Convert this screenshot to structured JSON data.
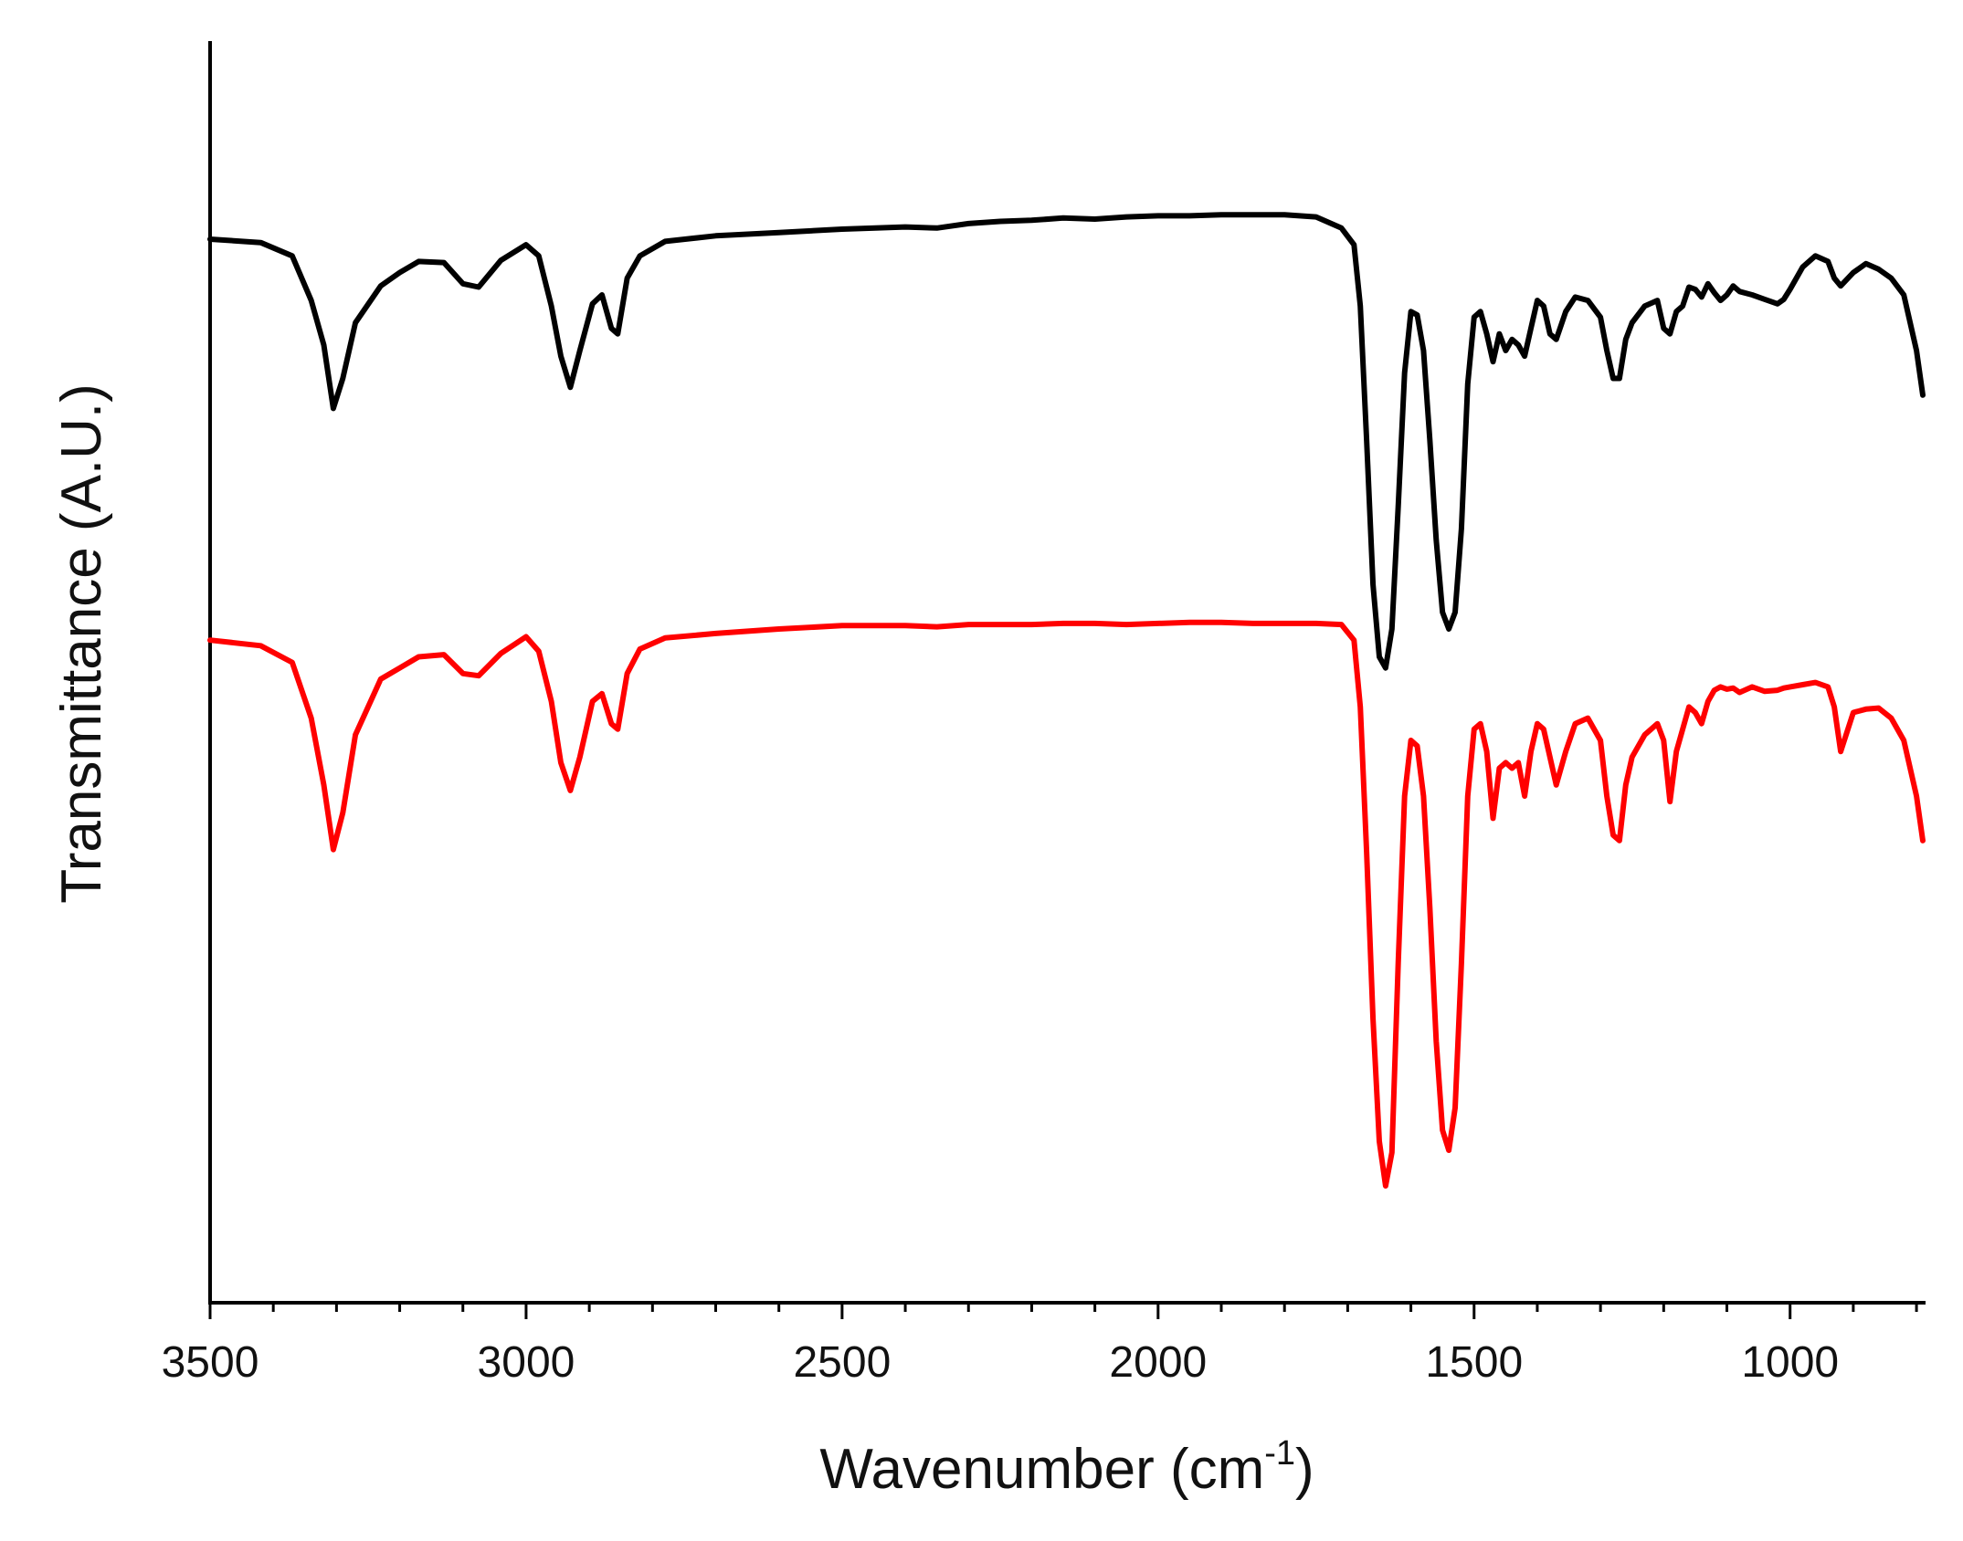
{
  "chart_data": {
    "type": "line",
    "title": "",
    "xlabel": "Wavenumber (cm",
    "xlabel_sup": "-1",
    "xlabel_close": ")",
    "ylabel": "Transmittance (A.U.)",
    "xlim": [
      3500,
      790
    ],
    "x_reversed": true,
    "ylim": [
      0,
      100
    ],
    "y_ticks_shown": false,
    "grid": false,
    "legend": "none",
    "x_ticks": [
      3500,
      3000,
      2500,
      2000,
      1500,
      1000
    ],
    "x_tick_labels": [
      "3500",
      "3000",
      "2500",
      "2000",
      "1500",
      "1000"
    ],
    "series": [
      {
        "color": "#000000",
        "x": [
          3500,
          3420,
          3370,
          3340,
          3320,
          3305,
          3290,
          3270,
          3230,
          3200,
          3170,
          3130,
          3100,
          3075,
          3040,
          3000,
          2980,
          2960,
          2945,
          2930,
          2915,
          2895,
          2880,
          2865,
          2855,
          2840,
          2820,
          2780,
          2700,
          2600,
          2500,
          2400,
          2350,
          2300,
          2250,
          2200,
          2150,
          2100,
          2050,
          2000,
          1950,
          1900,
          1850,
          1800,
          1750,
          1710,
          1690,
          1680,
          1670,
          1660,
          1650,
          1640,
          1630,
          1620,
          1610,
          1600,
          1590,
          1580,
          1570,
          1560,
          1550,
          1540,
          1530,
          1520,
          1510,
          1500,
          1490,
          1480,
          1470,
          1460,
          1450,
          1440,
          1430,
          1420,
          1410,
          1400,
          1390,
          1380,
          1370,
          1355,
          1340,
          1320,
          1300,
          1290,
          1280,
          1270,
          1260,
          1250,
          1230,
          1210,
          1200,
          1190,
          1180,
          1170,
          1160,
          1150,
          1140,
          1130,
          1120,
          1110,
          1100,
          1090,
          1080,
          1060,
          1040,
          1020,
          1010,
          1000,
          980,
          960,
          940,
          930,
          920,
          900,
          880,
          860,
          840,
          820,
          800,
          790
        ],
        "y": [
          90.0,
          89.7,
          88.5,
          84.5,
          80.5,
          74.8,
          77.5,
          82.5,
          85.8,
          87.0,
          88.0,
          87.9,
          86.0,
          85.7,
          88.1,
          89.5,
          88.5,
          84.0,
          79.5,
          76.7,
          80.0,
          84.2,
          85.0,
          82.0,
          81.5,
          86.5,
          88.5,
          89.8,
          90.3,
          90.6,
          90.9,
          91.1,
          91.0,
          91.4,
          91.6,
          91.7,
          91.9,
          91.8,
          92.0,
          92.1,
          92.1,
          92.2,
          92.2,
          92.2,
          92.0,
          91.0,
          89.5,
          84.0,
          72.0,
          59.0,
          52.5,
          51.5,
          55.0,
          66.0,
          78.0,
          83.5,
          83.2,
          80.0,
          72.0,
          63.0,
          56.5,
          55.0,
          56.5,
          64.0,
          77.0,
          83.0,
          83.5,
          81.5,
          79.0,
          81.5,
          80.0,
          81.0,
          80.5,
          79.5,
          82.0,
          84.5,
          84.0,
          81.5,
          81.0,
          83.5,
          84.8,
          84.5,
          83.0,
          80.0,
          77.5,
          77.5,
          81.0,
          82.5,
          84.0,
          84.5,
          82.0,
          81.5,
          83.5,
          84.0,
          85.7,
          85.5,
          84.8,
          86.0,
          85.2,
          84.5,
          85.0,
          85.8,
          85.3,
          85.0,
          84.6,
          84.2,
          84.6,
          85.5,
          87.5,
          88.5,
          88.0,
          86.5,
          85.8,
          87.0,
          87.8,
          87.3,
          86.5,
          85.0,
          80.0,
          76.0
        ]
      },
      {
        "color": "#ff0000",
        "x": [
          3500,
          3420,
          3370,
          3340,
          3320,
          3305,
          3290,
          3270,
          3230,
          3200,
          3170,
          3130,
          3100,
          3075,
          3040,
          3000,
          2980,
          2960,
          2945,
          2930,
          2915,
          2895,
          2880,
          2865,
          2855,
          2840,
          2820,
          2780,
          2700,
          2600,
          2500,
          2400,
          2350,
          2300,
          2250,
          2200,
          2150,
          2100,
          2050,
          2000,
          1950,
          1900,
          1850,
          1800,
          1750,
          1710,
          1690,
          1680,
          1670,
          1660,
          1650,
          1640,
          1630,
          1620,
          1610,
          1600,
          1590,
          1580,
          1570,
          1560,
          1550,
          1540,
          1530,
          1520,
          1510,
          1500,
          1490,
          1480,
          1470,
          1460,
          1450,
          1440,
          1430,
          1420,
          1410,
          1400,
          1390,
          1380,
          1370,
          1355,
          1340,
          1320,
          1300,
          1290,
          1280,
          1270,
          1260,
          1250,
          1230,
          1210,
          1200,
          1190,
          1180,
          1170,
          1160,
          1150,
          1140,
          1130,
          1120,
          1110,
          1100,
          1090,
          1080,
          1060,
          1040,
          1020,
          1010,
          1000,
          980,
          960,
          940,
          930,
          920,
          900,
          880,
          860,
          840,
          820,
          800,
          790
        ],
        "y": [
          54.0,
          53.5,
          52.0,
          47.0,
          41.0,
          35.2,
          38.5,
          45.5,
          50.5,
          51.5,
          52.5,
          52.7,
          51.0,
          50.8,
          52.8,
          54.3,
          53.0,
          48.5,
          43.0,
          40.5,
          43.5,
          48.5,
          49.2,
          46.5,
          46.0,
          51.0,
          53.2,
          54.2,
          54.6,
          55.0,
          55.3,
          55.3,
          55.2,
          55.4,
          55.4,
          55.4,
          55.5,
          55.5,
          55.4,
          55.5,
          55.6,
          55.6,
          55.5,
          55.5,
          55.5,
          55.4,
          54.0,
          48.0,
          35.0,
          20.0,
          9.0,
          5.0,
          8.0,
          25.0,
          40.0,
          45.0,
          44.5,
          40.0,
          30.0,
          18.0,
          10.0,
          8.2,
          12.0,
          25.0,
          40.0,
          46.0,
          46.5,
          44.0,
          38.0,
          42.5,
          43.0,
          42.5,
          43.0,
          40.0,
          44.0,
          46.5,
          46.0,
          43.5,
          41.0,
          44.0,
          46.5,
          47.0,
          45.0,
          40.0,
          36.5,
          36.0,
          41.0,
          43.5,
          45.5,
          46.5,
          45.0,
          39.5,
          44.0,
          46.0,
          48.0,
          47.5,
          46.5,
          48.5,
          49.5,
          49.8,
          49.6,
          49.7,
          49.3,
          49.8,
          49.4,
          49.5,
          49.7,
          49.8,
          50.0,
          50.2,
          49.8,
          48.0,
          44.0,
          47.5,
          47.8,
          47.9,
          47.0,
          45.0,
          40.0,
          36.0
        ]
      }
    ]
  }
}
